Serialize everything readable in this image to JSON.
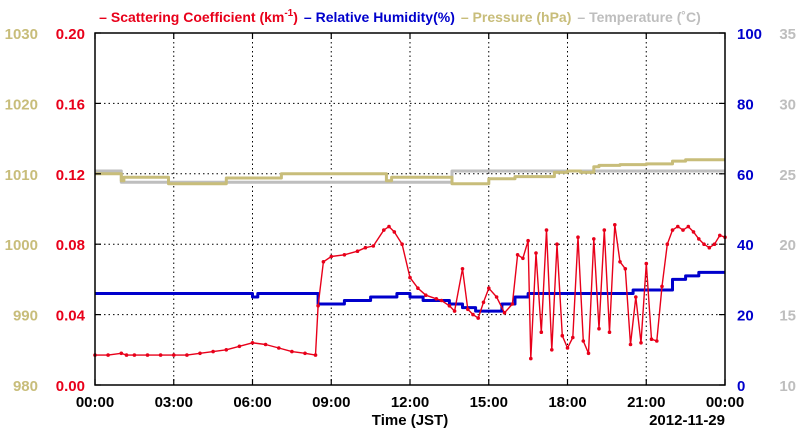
{
  "chart_data": {
    "type": "line",
    "title": "",
    "legend": {
      "placement": "top",
      "entries": [
        {
          "marker": "–",
          "text": "Scattering Coefficient (km",
          "sup": "-1",
          "after": ")",
          "color": "#e8001a"
        },
        {
          "marker": "–",
          "text": "Relative Humidity(%)",
          "color": "#0000cc"
        },
        {
          "marker": "–",
          "text": "Pressure (hPa)",
          "color": "#c8bd7a"
        },
        {
          "marker": "–",
          "text": "Temperature (˚C)",
          "color": "#bebebe"
        }
      ]
    },
    "xlabel": "Time (JST)",
    "date_label": "2012-11-29",
    "x_ticks": [
      "00:00",
      "03:00",
      "06:00",
      "09:00",
      "12:00",
      "15:00",
      "18:00",
      "21:00",
      "00:00"
    ],
    "xlim_hours": [
      0,
      24
    ],
    "grid": true,
    "axes": {
      "pressure": {
        "side": "left-outer",
        "ticks": [
          "980",
          "990",
          "1000",
          "1010",
          "1020",
          "1030"
        ],
        "range": [
          980,
          1030
        ],
        "color": "#c8bd7a"
      },
      "scattering": {
        "side": "left-inner",
        "ticks": [
          "0.00",
          "0.04",
          "0.08",
          "0.12",
          "0.16",
          "0.20"
        ],
        "range": [
          0,
          0.2
        ],
        "color": "#e8001a"
      },
      "humidity": {
        "side": "right-inner",
        "ticks": [
          "0",
          "20",
          "40",
          "60",
          "80",
          "100"
        ],
        "range": [
          0,
          100
        ],
        "color": "#0000cc"
      },
      "temperature": {
        "side": "right-outer",
        "ticks": [
          "10",
          "15",
          "20",
          "25",
          "30",
          "35"
        ],
        "range": [
          10,
          35
        ],
        "color": "#bebebe"
      }
    },
    "series": [
      {
        "name": "Scattering Coefficient",
        "axis": "scattering",
        "color": "#e8001a",
        "markers": true,
        "x": [
          0,
          0.5,
          1.0,
          1.2,
          1.5,
          2.0,
          2.5,
          3.0,
          3.5,
          4.0,
          4.5,
          5.0,
          5.5,
          6.0,
          6.5,
          7.0,
          7.5,
          8.0,
          8.4,
          8.5,
          8.7,
          9.0,
          9.5,
          10.0,
          10.3,
          10.6,
          11.0,
          11.2,
          11.4,
          11.7,
          12.0,
          12.3,
          12.6,
          13.0,
          13.2,
          13.5,
          13.7,
          14.0,
          14.2,
          14.4,
          14.6,
          14.8,
          15.0,
          15.3,
          15.6,
          15.9,
          16.1,
          16.3,
          16.5,
          16.6,
          16.8,
          17.0,
          17.2,
          17.4,
          17.6,
          17.8,
          18.0,
          18.2,
          18.4,
          18.6,
          18.8,
          19.0,
          19.2,
          19.4,
          19.6,
          19.8,
          20.0,
          20.2,
          20.4,
          20.6,
          20.8,
          21.0,
          21.2,
          21.4,
          21.6,
          21.8,
          22.0,
          22.2,
          22.4,
          22.6,
          22.8,
          23.0,
          23.2,
          23.4,
          23.6,
          23.8,
          24.0
        ],
        "values": [
          0.017,
          0.017,
          0.018,
          0.017,
          0.017,
          0.017,
          0.017,
          0.017,
          0.017,
          0.018,
          0.019,
          0.02,
          0.022,
          0.024,
          0.023,
          0.021,
          0.019,
          0.018,
          0.017,
          0.045,
          0.07,
          0.073,
          0.074,
          0.076,
          0.078,
          0.079,
          0.088,
          0.09,
          0.087,
          0.08,
          0.061,
          0.055,
          0.051,
          0.049,
          0.048,
          0.045,
          0.042,
          0.066,
          0.043,
          0.04,
          0.038,
          0.047,
          0.055,
          0.05,
          0.041,
          0.046,
          0.074,
          0.072,
          0.082,
          0.015,
          0.075,
          0.03,
          0.088,
          0.02,
          0.08,
          0.028,
          0.021,
          0.027,
          0.084,
          0.025,
          0.018,
          0.083,
          0.032,
          0.088,
          0.03,
          0.091,
          0.07,
          0.066,
          0.023,
          0.05,
          0.024,
          0.069,
          0.026,
          0.025,
          0.056,
          0.08,
          0.088,
          0.09,
          0.088,
          0.09,
          0.087,
          0.083,
          0.08,
          0.078,
          0.08,
          0.085,
          0.084
        ]
      },
      {
        "name": "Relative Humidity",
        "axis": "humidity",
        "color": "#0000cc",
        "markers": false,
        "x": [
          0,
          5.8,
          6.0,
          6.2,
          6.5,
          8.4,
          8.5,
          9.5,
          10.0,
          10.5,
          11.0,
          11.5,
          12.0,
          12.5,
          13.0,
          13.5,
          14.0,
          14.5,
          15.0,
          15.5,
          16.0,
          16.5,
          17.0,
          20.0,
          20.5,
          21.0,
          21.5,
          22.0,
          22.5,
          23.0,
          24.0
        ],
        "values": [
          26,
          26,
          25,
          26,
          26,
          26,
          23,
          24,
          24,
          25,
          25,
          26,
          25,
          24,
          24,
          23,
          22,
          21,
          21,
          23,
          25,
          26,
          26,
          26,
          27,
          27,
          27,
          30,
          31,
          32,
          32
        ]
      },
      {
        "name": "Pressure",
        "axis": "pressure",
        "color": "#c8bd7a",
        "markers": false,
        "x": [
          0,
          0.9,
          1.0,
          1.1,
          2.7,
          2.8,
          2.9,
          3.2,
          4.5,
          5.0,
          7.0,
          7.1,
          8.0,
          10.0,
          11.0,
          11.1,
          11.3,
          13.0,
          13.6,
          14.0,
          15.0,
          16.0,
          17.0,
          17.5,
          18.0,
          18.5,
          19.0,
          19.2,
          19.5,
          20.0,
          21.0,
          22.0,
          22.5,
          24.0
        ],
        "values": [
          1010,
          1010,
          1009,
          1009.5,
          1009.5,
          1008.6,
          1008.6,
          1008.6,
          1008.6,
          1009.4,
          1009.4,
          1010,
          1010,
          1010,
          1010,
          1009,
          1009.5,
          1009.5,
          1008.6,
          1008.6,
          1009.3,
          1009.6,
          1009.6,
          1010.2,
          1010.4,
          1010.2,
          1011,
          1011.2,
          1011.2,
          1011.3,
          1011.4,
          1011.8,
          1012,
          1012
        ]
      },
      {
        "name": "Temperature",
        "axis": "temperature",
        "color": "#bebebe",
        "markers": false,
        "x": [
          0,
          0.9,
          1.0,
          13.5,
          13.6,
          24.0
        ],
        "values": [
          25.2,
          25.2,
          24.4,
          24.4,
          25.2,
          25.2
        ]
      }
    ]
  }
}
